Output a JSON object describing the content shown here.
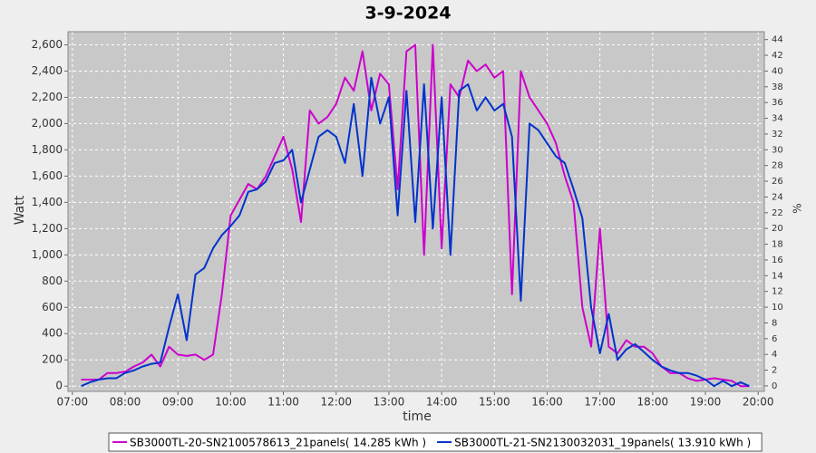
{
  "chart_data": {
    "type": "line",
    "title": "3-9-2024",
    "xlabel": "time",
    "ylabel": "Watt",
    "y2label": "%",
    "x": [
      "07:10",
      "07:20",
      "07:30",
      "07:40",
      "07:50",
      "08:00",
      "08:10",
      "08:20",
      "08:30",
      "08:40",
      "08:50",
      "09:00",
      "09:10",
      "09:20",
      "09:30",
      "09:40",
      "09:50",
      "10:00",
      "10:10",
      "10:20",
      "10:30",
      "10:40",
      "10:50",
      "11:00",
      "11:10",
      "11:20",
      "11:30",
      "11:40",
      "11:50",
      "12:00",
      "12:10",
      "12:20",
      "12:30",
      "12:40",
      "12:50",
      "13:00",
      "13:10",
      "13:20",
      "13:30",
      "13:40",
      "13:50",
      "14:00",
      "14:10",
      "14:20",
      "14:30",
      "14:40",
      "14:50",
      "15:00",
      "15:10",
      "15:20",
      "15:30",
      "15:40",
      "15:50",
      "16:00",
      "16:10",
      "16:20",
      "16:30",
      "16:40",
      "16:50",
      "17:00",
      "17:10",
      "17:20",
      "17:30",
      "17:40",
      "17:50",
      "18:00",
      "18:10",
      "18:20",
      "18:30",
      "18:40",
      "18:50",
      "19:00",
      "19:10",
      "19:20",
      "19:30",
      "19:40",
      "19:50"
    ],
    "series": [
      {
        "name": "SB3000TL-20-SN2100578613_21panels( 14.285 kWh )",
        "color": "#cc00cc",
        "values": [
          50,
          50,
          50,
          100,
          100,
          110,
          150,
          180,
          240,
          150,
          300,
          240,
          230,
          240,
          200,
          240,
          700,
          1300,
          1420,
          1540,
          1500,
          1600,
          1750,
          1900,
          1650,
          1250,
          2100,
          2000,
          2050,
          2150,
          2350,
          2250,
          2550,
          2100,
          2380,
          2300,
          1500,
          2550,
          2600,
          1000,
          2600,
          1050,
          2300,
          2200,
          2480,
          2400,
          2450,
          2350,
          2400,
          700,
          2400,
          2200,
          2100,
          2000,
          1850,
          1600,
          1400,
          600,
          300,
          1200,
          300,
          250,
          350,
          300,
          300,
          250,
          150,
          100,
          100,
          60,
          40,
          50,
          60,
          50,
          40,
          0,
          0
        ]
      },
      {
        "name": "SB3000TL-21-SN2130032031_19panels( 13.910 kWh )",
        "color": "#0033cc",
        "values": [
          0,
          30,
          50,
          60,
          60,
          100,
          120,
          150,
          170,
          180,
          450,
          700,
          350,
          850,
          900,
          1050,
          1150,
          1220,
          1300,
          1480,
          1500,
          1560,
          1700,
          1720,
          1800,
          1400,
          1650,
          1900,
          1950,
          1900,
          1700,
          2150,
          1600,
          2350,
          2000,
          2200,
          1300,
          2250,
          1250,
          2300,
          1200,
          2200,
          1000,
          2250,
          2300,
          2100,
          2200,
          2100,
          2150,
          1900,
          650,
          2000,
          1950,
          1850,
          1750,
          1700,
          1500,
          1280,
          600,
          250,
          550,
          200,
          280,
          320,
          260,
          200,
          150,
          120,
          100,
          100,
          80,
          50,
          0,
          40,
          0,
          30,
          0
        ]
      }
    ],
    "xlim": [
      "06:55",
      "20:07"
    ],
    "xticks": [
      "07:00",
      "08:00",
      "09:00",
      "10:00",
      "11:00",
      "12:00",
      "13:00",
      "14:00",
      "15:00",
      "16:00",
      "17:00",
      "18:00",
      "19:00",
      "20:00"
    ],
    "ylim": [
      -40,
      2700
    ],
    "yticks": [
      0,
      200,
      400,
      600,
      800,
      {
        "value": 1000,
        "label": "1,000"
      },
      {
        "value": 1200,
        "label": "1,200"
      },
      {
        "value": 1400,
        "label": "1,400"
      },
      {
        "value": 1600,
        "label": "1,600"
      },
      {
        "value": 1800,
        "label": "1,800"
      },
      {
        "value": 2000,
        "label": "2,000"
      },
      {
        "value": 2200,
        "label": "2,200"
      },
      {
        "value": 2400,
        "label": "2,400"
      },
      {
        "value": 2600,
        "label": "2,600"
      }
    ],
    "y2lim": [
      -0.7,
      45
    ],
    "y2ticks": [
      0,
      2,
      4,
      6,
      8,
      10,
      12,
      14,
      16,
      18,
      20,
      22,
      24,
      26,
      28,
      30,
      32,
      34,
      36,
      38,
      40,
      42,
      44
    ],
    "grid": true
  }
}
